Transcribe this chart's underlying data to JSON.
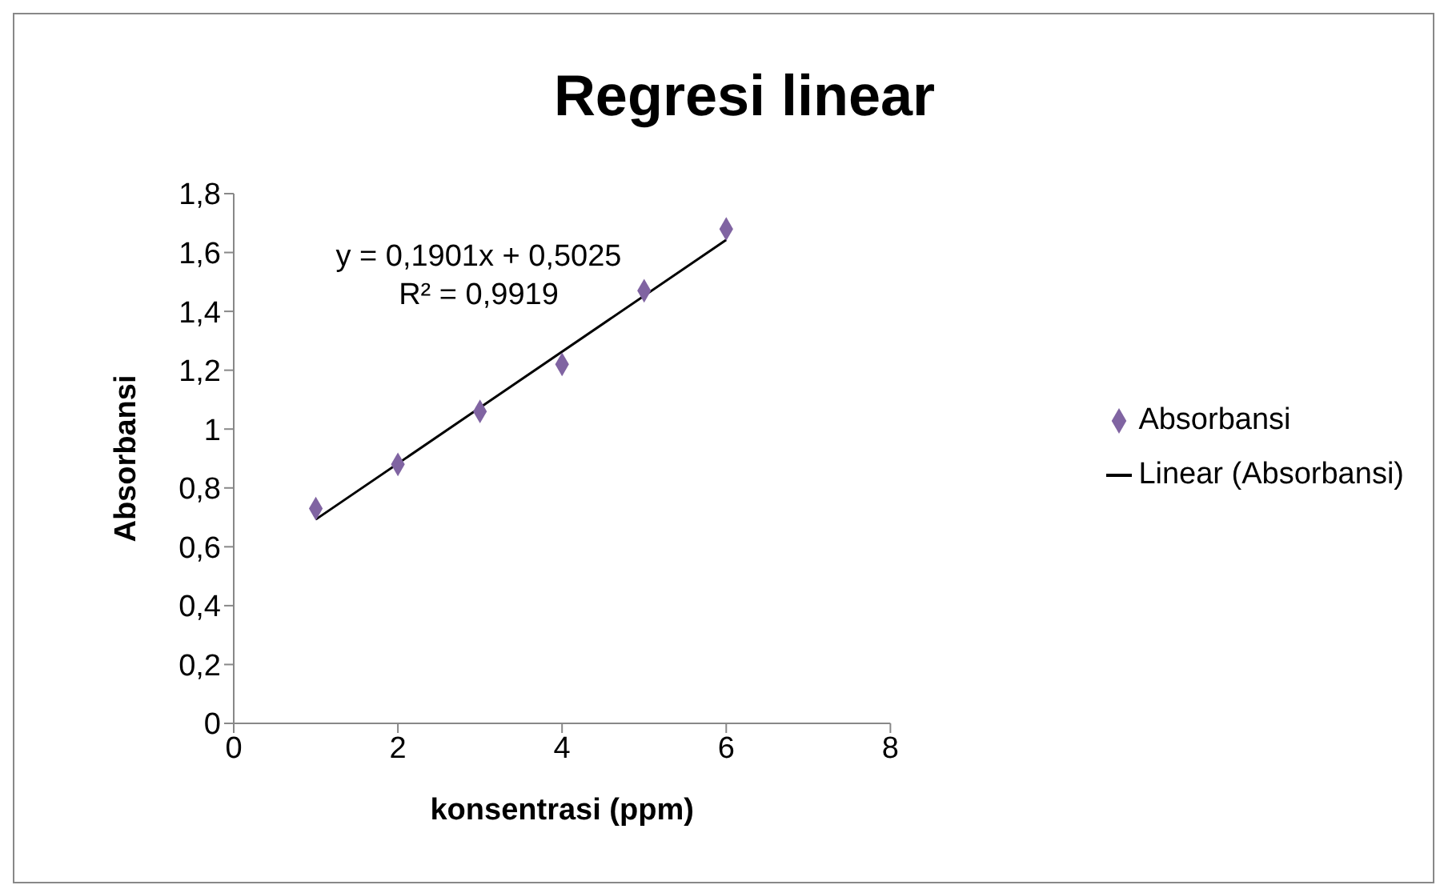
{
  "chart_data": {
    "type": "scatter",
    "title": "Regresi linear",
    "xlabel": "konsentrasi (ppm)",
    "ylabel": "Absorbansi",
    "x": [
      1,
      2,
      3,
      4,
      5,
      6
    ],
    "series": [
      {
        "name": "Absorbansi",
        "type": "scatter",
        "color": "#8064a2",
        "values": [
          0.73,
          0.88,
          1.06,
          1.22,
          1.47,
          1.68
        ],
        "marker": "diamond"
      },
      {
        "name": "Linear (Absorbansi)",
        "type": "line",
        "color": "#000000",
        "x": [
          1,
          6
        ],
        "values": [
          0.693,
          1.643
        ],
        "marker": "none",
        "line_style": "solid"
      }
    ],
    "xlim": [
      0,
      8
    ],
    "xticks": [
      0,
      2,
      4,
      6,
      8
    ],
    "ylim": [
      0,
      1.8
    ],
    "yticks": [
      0,
      {
        "value": 0.2,
        "label": "0,2"
      },
      {
        "value": 0.4,
        "label": "0,4"
      },
      {
        "value": 0.6,
        "label": "0,6"
      },
      {
        "value": 0.8,
        "label": "0,8"
      },
      1,
      {
        "value": 1.2,
        "label": "1,2"
      },
      {
        "value": 1.4,
        "label": "1,4"
      },
      {
        "value": 1.6,
        "label": "1,6"
      },
      {
        "value": 1.8,
        "label": "1,8"
      }
    ],
    "annotations": [
      "y = 0,1901x + 0,5025",
      "R² = 0,9919"
    ],
    "legend": "right"
  }
}
